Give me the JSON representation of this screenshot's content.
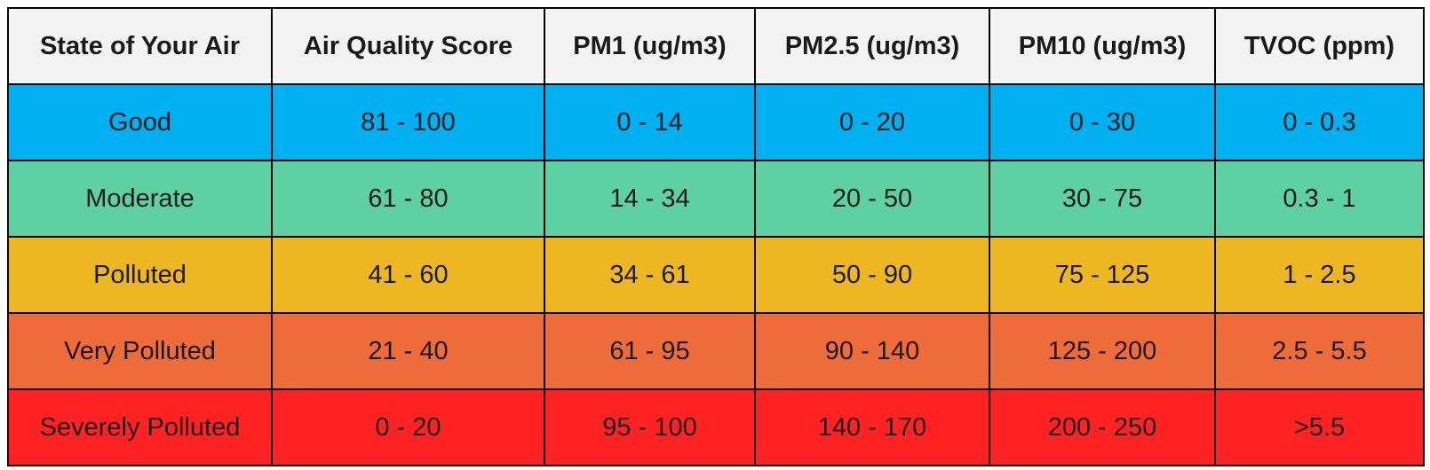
{
  "table": {
    "headers": [
      "State of Your Air",
      "Air Quality Score",
      "PM1 (ug/m3)",
      "PM2.5 (ug/m3)",
      "PM10 (ug/m3)",
      "TVOC (ppm)"
    ],
    "rows": [
      {
        "color": "#00b0f0",
        "cells": [
          "Good",
          "81 - 100",
          "0 - 14",
          "0 - 20",
          "0 - 30",
          "0 - 0.3"
        ]
      },
      {
        "color": "#5ed1a3",
        "cells": [
          "Moderate",
          "61 - 80",
          "14 - 34",
          "20 - 50",
          "30 - 75",
          "0.3 - 1"
        ]
      },
      {
        "color": "#edb722",
        "cells": [
          "Polluted",
          "41 - 60",
          "34 - 61",
          "50 - 90",
          "75 - 125",
          "1 - 2.5"
        ]
      },
      {
        "color": "#ee6b3a",
        "cells": [
          "Very Polluted",
          "21 - 40",
          "61 - 95",
          "90 - 140",
          "125 - 200",
          "2.5 - 5.5"
        ]
      },
      {
        "color": "#ff2222",
        "cells": [
          "Severely Polluted",
          "0 - 20",
          "95 - 100",
          "140 - 170",
          "200 - 250",
          ">5.5"
        ]
      }
    ]
  }
}
